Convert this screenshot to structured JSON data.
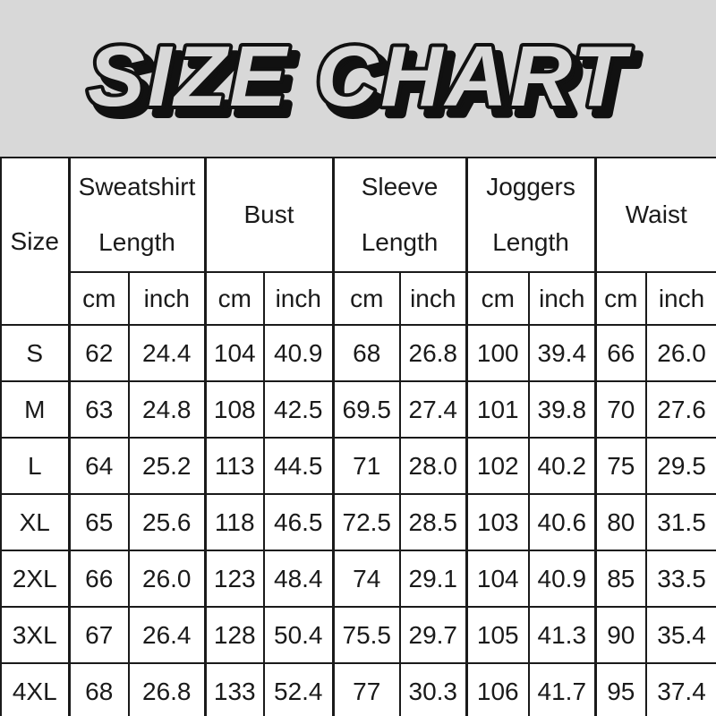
{
  "page": {
    "title": "SIZE CHART",
    "background_color": "#d8d8d8",
    "table_background": "#ffffff",
    "border_color": "#1a1a1a",
    "text_color": "#1a1a1a"
  },
  "table": {
    "size_header": "Size",
    "groups": [
      {
        "label": "Sweatshirt Length",
        "lines": [
          "Sweatshirt",
          "Length"
        ]
      },
      {
        "label": "Bust",
        "lines": [
          "Bust"
        ]
      },
      {
        "label": "Sleeve Length",
        "lines": [
          "Sleeve",
          "Length"
        ]
      },
      {
        "label": "Joggers Length",
        "lines": [
          "Joggers",
          "Length"
        ]
      },
      {
        "label": "Waist",
        "lines": [
          "Waist"
        ]
      }
    ],
    "unit_headers": [
      "cm",
      "inch"
    ],
    "rows": [
      [
        "S",
        "62",
        "24.4",
        "104",
        "40.9",
        "68",
        "26.8",
        "100",
        "39.4",
        "66",
        "26.0"
      ],
      [
        "M",
        "63",
        "24.8",
        "108",
        "42.5",
        "69.5",
        "27.4",
        "101",
        "39.8",
        "70",
        "27.6"
      ],
      [
        "L",
        "64",
        "25.2",
        "113",
        "44.5",
        "71",
        "28.0",
        "102",
        "40.2",
        "75",
        "29.5"
      ],
      [
        "XL",
        "65",
        "25.6",
        "118",
        "46.5",
        "72.5",
        "28.5",
        "103",
        "40.6",
        "80",
        "31.5"
      ],
      [
        "2XL",
        "66",
        "26.0",
        "123",
        "48.4",
        "74",
        "29.1",
        "104",
        "40.9",
        "85",
        "33.5"
      ],
      [
        "3XL",
        "67",
        "26.4",
        "128",
        "50.4",
        "75.5",
        "29.7",
        "105",
        "41.3",
        "90",
        "35.4"
      ],
      [
        "4XL",
        "68",
        "26.8",
        "133",
        "52.4",
        "77",
        "30.3",
        "106",
        "41.7",
        "95",
        "37.4"
      ]
    ]
  },
  "chart_data": {
    "type": "table",
    "title": "SIZE CHART",
    "columns": [
      "Size",
      "Sweatshirt Length cm",
      "Sweatshirt Length inch",
      "Bust cm",
      "Bust inch",
      "Sleeve Length cm",
      "Sleeve Length inch",
      "Joggers Length cm",
      "Joggers Length inch",
      "Waist cm",
      "Waist inch"
    ],
    "rows": [
      [
        "S",
        62,
        24.4,
        104,
        40.9,
        68,
        26.8,
        100,
        39.4,
        66,
        26.0
      ],
      [
        "M",
        63,
        24.8,
        108,
        42.5,
        69.5,
        27.4,
        101,
        39.8,
        70,
        27.6
      ],
      [
        "L",
        64,
        25.2,
        113,
        44.5,
        71,
        28.0,
        102,
        40.2,
        75,
        29.5
      ],
      [
        "XL",
        65,
        25.6,
        118,
        46.5,
        72.5,
        28.5,
        103,
        40.6,
        80,
        31.5
      ],
      [
        "2XL",
        66,
        26.0,
        123,
        48.4,
        74,
        29.1,
        104,
        40.9,
        85,
        33.5
      ],
      [
        "3XL",
        67,
        26.4,
        128,
        50.4,
        75.5,
        29.7,
        105,
        41.3,
        90,
        35.4
      ],
      [
        "4XL",
        68,
        26.8,
        133,
        52.4,
        77,
        30.3,
        106,
        41.7,
        95,
        37.4
      ]
    ]
  }
}
